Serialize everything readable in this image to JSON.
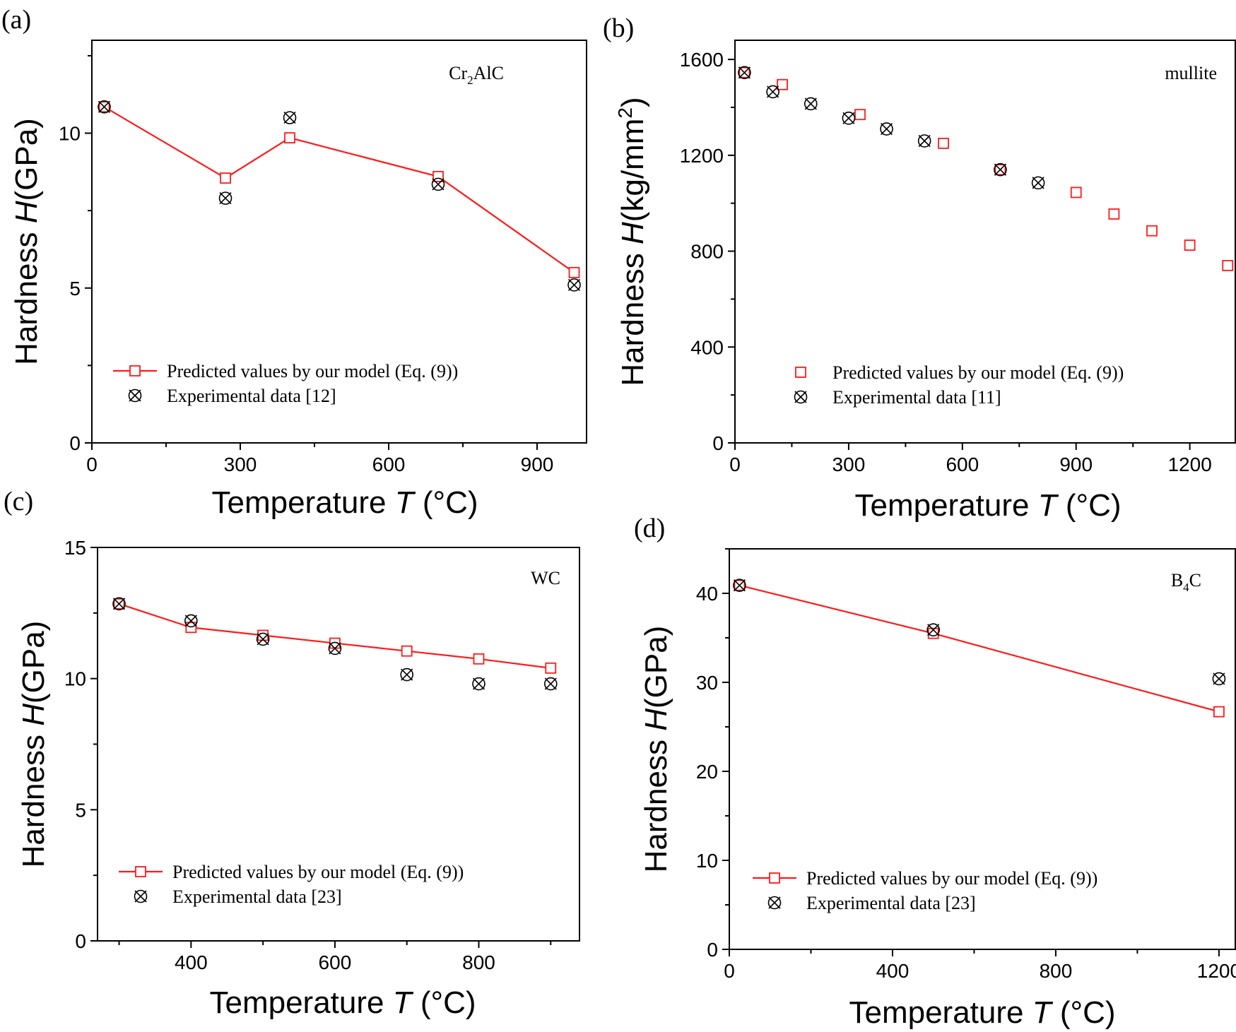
{
  "figure": {
    "accent_color": "#ff1a1a",
    "marker_color": "#000000",
    "predicted_icon": "open-square-marker",
    "experimental_icon": "crossed-circle-marker"
  },
  "chart_data": [
    {
      "id": "a",
      "panel_label": "(a)",
      "type": "line",
      "material": {
        "main": "Cr",
        "sub": "2",
        "rest": "AlC"
      },
      "xlabel": "Temperature",
      "xvar": "T",
      "xunit": "(°C)",
      "ylabel": "Hardness",
      "yvar": "H",
      "yunit": "(GPa)",
      "xlim": [
        0,
        1000
      ],
      "ylim": [
        0,
        13
      ],
      "xticks": [
        0,
        300,
        600,
        900
      ],
      "yticks": [
        0,
        5,
        10
      ],
      "legend": {
        "predicted": "Predicted values by our model (Eq. (9))",
        "experimental": "Experimental data [12]",
        "predicted_line": true,
        "placement": "bottom-left"
      },
      "series": [
        {
          "name": "Predicted values by our model (Eq. (9))",
          "style": "line-square",
          "x": [
            25,
            270,
            400,
            700,
            975
          ],
          "y": [
            10.85,
            8.55,
            9.85,
            8.6,
            5.5
          ]
        },
        {
          "name": "Experimental data [12]",
          "style": "crossed-circle",
          "x": [
            25,
            270,
            400,
            700,
            975
          ],
          "y": [
            10.85,
            7.9,
            10.5,
            8.35,
            5.1
          ]
        }
      ]
    },
    {
      "id": "b",
      "panel_label": "(b)",
      "type": "scatter",
      "material": {
        "main": "mullite",
        "sub": "",
        "rest": ""
      },
      "xlabel": "Temperature",
      "xvar": "T",
      "xunit": "(°C)",
      "ylabel": "Hardness",
      "yvar": "H",
      "yunit": "(kg/mm",
      "yunit_sup": "2",
      "yunit_end": ")",
      "xlim": [
        0,
        1320
      ],
      "ylim": [
        0,
        1680
      ],
      "xticks": [
        0,
        300,
        600,
        900,
        1200
      ],
      "yticks": [
        0,
        400,
        800,
        1200,
        1600
      ],
      "legend": {
        "predicted": "Predicted values by our model (Eq. (9))",
        "experimental": "Experimental data [11]",
        "predicted_line": false,
        "placement": "bottom-left"
      },
      "series": [
        {
          "name": "Predicted values by our model (Eq. (9))",
          "style": "square",
          "x": [
            25,
            125,
            330,
            550,
            700,
            900,
            1000,
            1100,
            1200,
            1300
          ],
          "y": [
            1545,
            1495,
            1370,
            1250,
            1140,
            1045,
            955,
            885,
            825,
            740
          ]
        },
        {
          "name": "Experimental data [11]",
          "style": "crossed-circle",
          "x": [
            25,
            100,
            200,
            300,
            400,
            500,
            700,
            800
          ],
          "y": [
            1545,
            1465,
            1415,
            1355,
            1310,
            1260,
            1140,
            1085
          ]
        }
      ]
    },
    {
      "id": "c",
      "panel_label": "(c)",
      "type": "line",
      "material": {
        "main": "WC",
        "sub": "",
        "rest": ""
      },
      "xlabel": "Temperature",
      "xvar": "T",
      "xunit": "(°C)",
      "ylabel": "Hardness",
      "yvar": "H",
      "yunit": "(GPa)",
      "xlim": [
        270,
        940
      ],
      "ylim": [
        0,
        15
      ],
      "xticks": [
        400,
        600,
        800
      ],
      "yticks": [
        0,
        5,
        10,
        15
      ],
      "legend": {
        "predicted": "Predicted values by our model (Eq. (9))",
        "experimental": "Experimental data [23]",
        "predicted_line": true,
        "placement": "bottom-left"
      },
      "series": [
        {
          "name": "Predicted values by our model (Eq. (9))",
          "style": "line-square",
          "x": [
            300,
            400,
            500,
            600,
            700,
            800,
            900
          ],
          "y": [
            12.85,
            11.95,
            11.65,
            11.35,
            11.05,
            10.75,
            10.4
          ]
        },
        {
          "name": "Experimental data [23]",
          "style": "crossed-circle",
          "x": [
            300,
            400,
            500,
            600,
            700,
            800,
            900
          ],
          "y": [
            12.85,
            12.2,
            11.5,
            11.15,
            10.15,
            9.8,
            9.8
          ]
        }
      ]
    },
    {
      "id": "d",
      "panel_label": "(d)",
      "type": "line",
      "material": {
        "main": "B",
        "sub": "4",
        "rest": "C"
      },
      "xlabel": "Temperature",
      "xvar": "T",
      "xunit": "(°C)",
      "ylabel": "Hardness",
      "yvar": "H",
      "yunit": "(GPa)",
      "xlim": [
        0,
        1240
      ],
      "ylim": [
        0,
        45
      ],
      "xticks": [
        0,
        400,
        800,
        1200
      ],
      "yticks": [
        0,
        10,
        20,
        30,
        40
      ],
      "legend": {
        "predicted": "Predicted values by our model (Eq. (9))",
        "experimental": "Experimental data [23]",
        "predicted_line": true,
        "placement": "bottom-left"
      },
      "series": [
        {
          "name": "Predicted values by our model (Eq. (9))",
          "style": "line-square",
          "x": [
            25,
            500,
            1200
          ],
          "y": [
            40.9,
            35.5,
            26.7
          ]
        },
        {
          "name": "Experimental data [23]",
          "style": "crossed-circle",
          "x": [
            25,
            500,
            1200
          ],
          "y": [
            40.9,
            35.9,
            30.4
          ]
        }
      ]
    }
  ]
}
